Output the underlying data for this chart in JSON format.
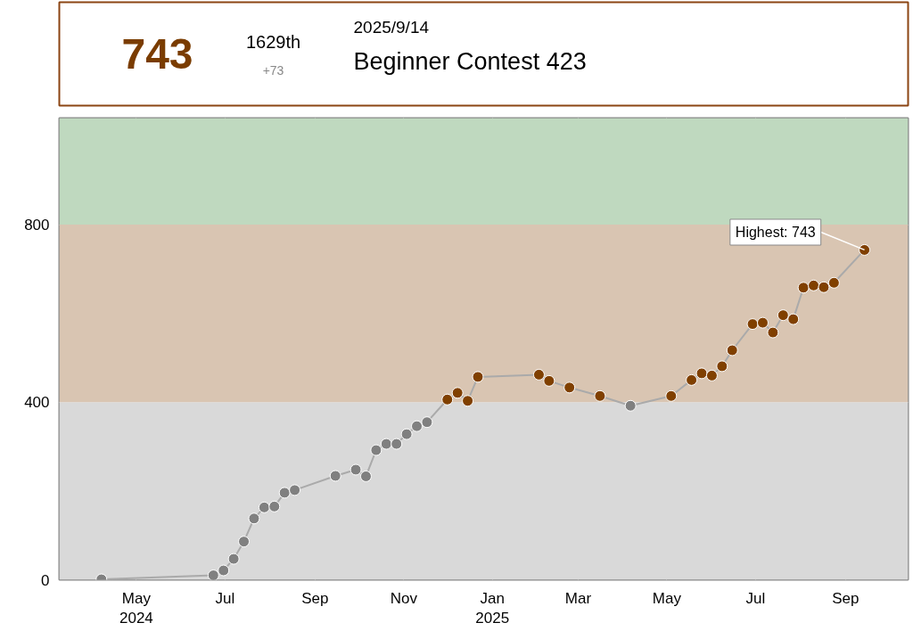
{
  "chart_data": [
    {
      "type": "other",
      "title": "Beginner Contest 423",
      "subtitle": "2025/9/14",
      "annotations": [
        "743",
        "1629th",
        "+73"
      ]
    },
    {
      "type": "line",
      "marker": "circle",
      "grid": true,
      "ylim": [
        0,
        1040
      ],
      "yticks": [
        0,
        400,
        800
      ],
      "xlim": [
        "2024-03-09",
        "2025-10-14"
      ],
      "xticks": [
        {
          "value": "2024-05-01",
          "label": "May\n2024"
        },
        {
          "value": "2024-07-01",
          "label": "Jul"
        },
        {
          "value": "2024-09-01",
          "label": "Sep"
        },
        {
          "value": "2024-11-01",
          "label": "Nov"
        },
        {
          "value": "2025-01-01",
          "label": "Jan\n2025"
        },
        {
          "value": "2025-03-01",
          "label": "Mar"
        },
        {
          "value": "2025-05-01",
          "label": "May"
        },
        {
          "value": "2025-07-01",
          "label": "Jul"
        },
        {
          "value": "2025-09-01",
          "label": "Sep"
        }
      ],
      "bands": [
        {
          "axis": "y",
          "from": 0,
          "to": 400,
          "color": "#d9d9d9"
        },
        {
          "axis": "y",
          "from": 400,
          "to": 800,
          "color": "#d9c5b2"
        },
        {
          "axis": "y",
          "from": 800,
          "to": 1040,
          "color": "#bfd9bf"
        }
      ],
      "annotations": [
        {
          "text": "Highest: 743",
          "x": "2025-09-14",
          "y": 743
        }
      ],
      "series": [
        {
          "color": "#aaaaaa",
          "x": [
            "2024-04-07",
            "2024-06-23",
            "2024-06-30",
            "2024-07-07",
            "2024-07-14",
            "2024-07-21",
            "2024-07-28",
            "2024-08-04",
            "2024-08-11",
            "2024-08-18",
            "2024-09-15",
            "2024-09-29",
            "2024-10-06",
            "2024-10-13",
            "2024-10-20",
            "2024-10-27",
            "2024-11-03",
            "2024-11-10",
            "2024-11-17",
            "2024-12-01",
            "2024-12-08",
            "2024-12-15",
            "2024-12-22",
            "2025-02-02",
            "2025-02-09",
            "2025-02-23",
            "2025-03-16",
            "2025-04-06",
            "2025-05-04",
            "2025-05-18",
            "2025-05-25",
            "2025-06-01",
            "2025-06-08",
            "2025-06-15",
            "2025-06-29",
            "2025-07-06",
            "2025-07-13",
            "2025-07-20",
            "2025-07-27",
            "2025-08-03",
            "2025-08-10",
            "2025-08-17",
            "2025-08-24",
            "2025-09-14"
          ],
          "values": [
            1,
            10,
            21,
            47,
            86,
            138,
            163,
            165,
            196,
            202,
            234,
            248,
            233,
            292,
            306,
            306,
            328,
            346,
            355,
            406,
            421,
            403,
            457,
            462,
            448,
            433,
            414,
            392,
            414,
            450,
            465,
            460,
            481,
            517,
            576,
            579,
            557,
            596,
            587,
            658,
            663,
            659,
            669,
            743
          ],
          "colors": [
            "#808080",
            "#808080",
            "#808080",
            "#808080",
            "#808080",
            "#808080",
            "#808080",
            "#808080",
            "#808080",
            "#808080",
            "#808080",
            "#808080",
            "#808080",
            "#808080",
            "#808080",
            "#808080",
            "#808080",
            "#808080",
            "#808080",
            "#804000",
            "#804000",
            "#804000",
            "#804000",
            "#804000",
            "#804000",
            "#804000",
            "#804000",
            "#808080",
            "#804000",
            "#804000",
            "#804000",
            "#804000",
            "#804000",
            "#804000",
            "#804000",
            "#804000",
            "#804000",
            "#804000",
            "#804000",
            "#804000",
            "#804000",
            "#804000",
            "#804000",
            "#804000"
          ]
        }
      ]
    }
  ]
}
